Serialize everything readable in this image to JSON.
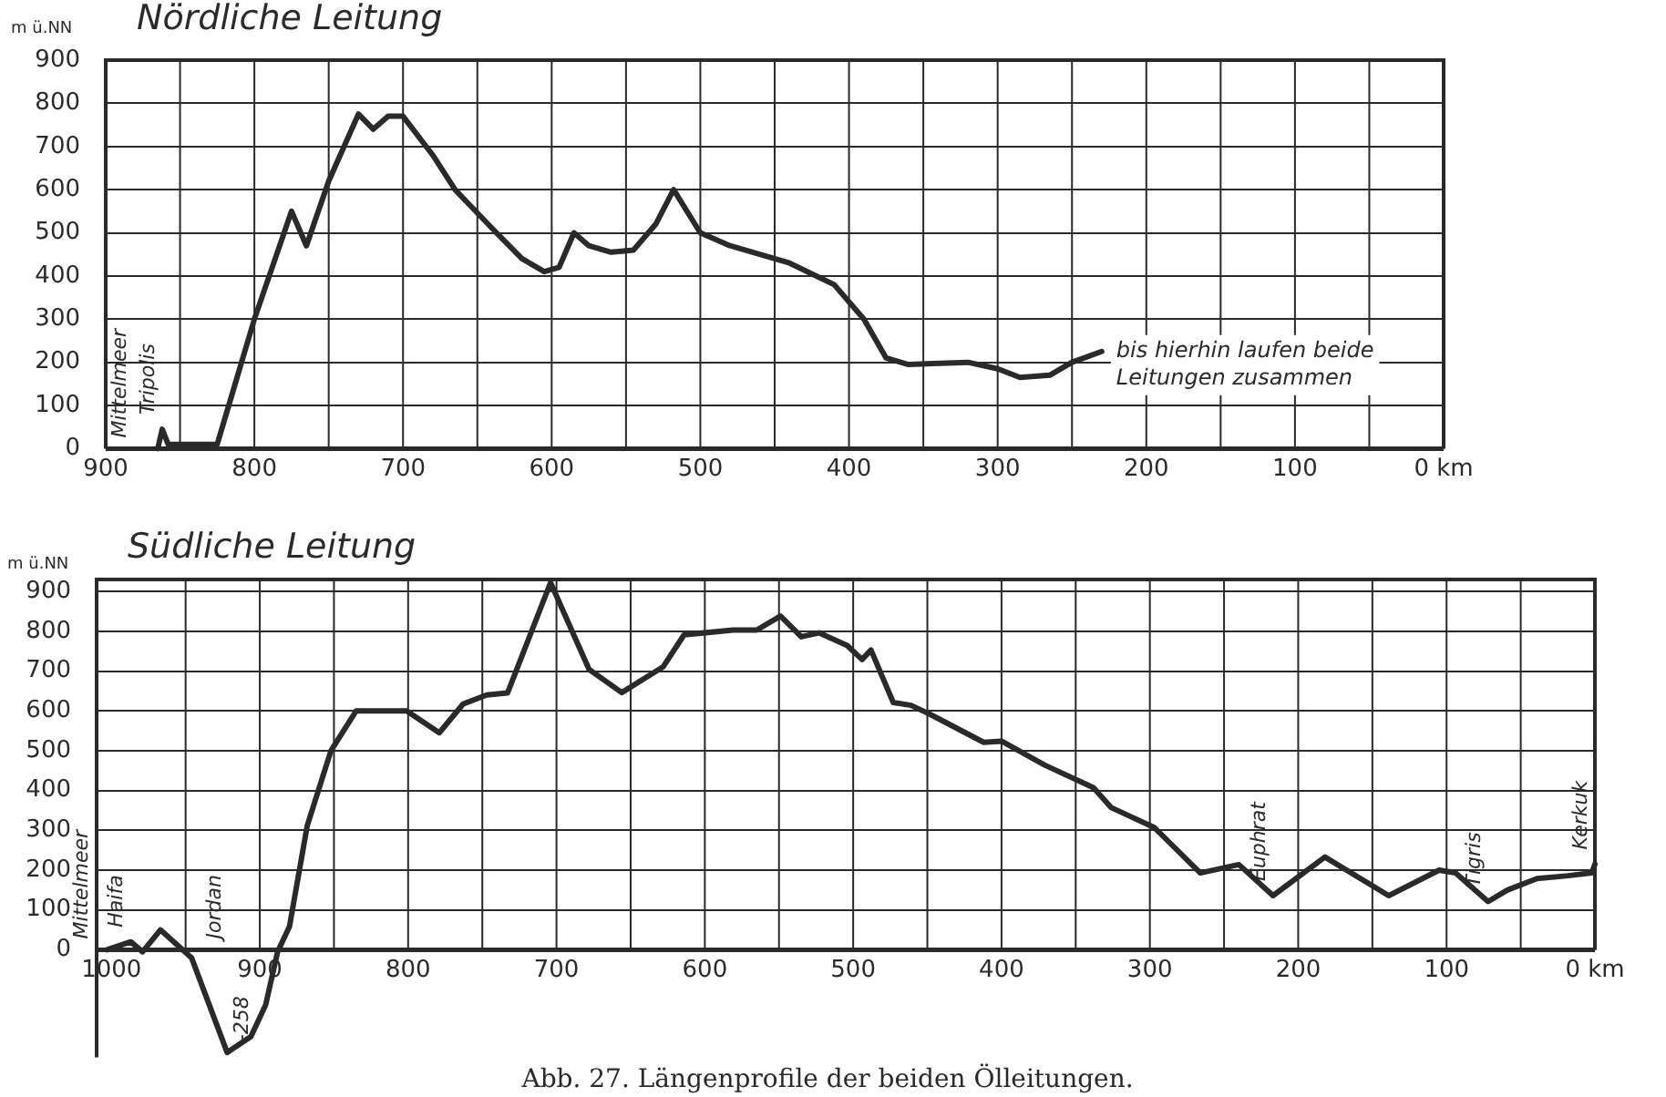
{
  "chart_data": [
    {
      "type": "line",
      "title": "Nördliche Leitung",
      "ylabel": "m ü.NN",
      "xlim": [
        900,
        0
      ],
      "ylim": [
        0,
        900
      ],
      "xticks": [
        900,
        {
          "value": 850,
          "label": null
        },
        800,
        {
          "value": 750,
          "label": null
        },
        700,
        {
          "value": 650,
          "label": null
        },
        600,
        {
          "value": 550,
          "label": null
        },
        500,
        {
          "value": 450,
          "label": null
        },
        400,
        {
          "value": 350,
          "label": null
        },
        300,
        {
          "value": 250,
          "label": null
        },
        200,
        {
          "value": 150,
          "label": null
        },
        100,
        {
          "value": 50,
          "label": null
        },
        {
          "value": 0,
          "label": "0 km"
        }
      ],
      "yticks": [
        0,
        100,
        200,
        300,
        400,
        500,
        600,
        700,
        800,
        900
      ],
      "grid": true,
      "series": [
        {
          "color": "#2a2a2a",
          "x": [
            865,
            862,
            858,
            825,
            800,
            790,
            775,
            765,
            750,
            730,
            720,
            710,
            700,
            680,
            665,
            640,
            620,
            605,
            595,
            585,
            575,
            560,
            545,
            530,
            518,
            500,
            480,
            440,
            410,
            390,
            375,
            360,
            320,
            300,
            285,
            265,
            250,
            230
          ],
          "values": [
            0,
            45,
            10,
            10,
            300,
            400,
            550,
            470,
            620,
            775,
            740,
            770,
            770,
            680,
            600,
            510,
            440,
            410,
            420,
            500,
            470,
            455,
            460,
            520,
            600,
            500,
            470,
            430,
            380,
            300,
            210,
            195,
            200,
            185,
            165,
            170,
            200,
            225
          ]
        }
      ],
      "annotations": [
        "Mittelmeer",
        {
          "text": "Tripolis",
          "x": 862,
          "y": 45
        },
        {
          "text": "bis hierhin laufen beide Leitungen zusammen",
          "x": 230,
          "y": 225
        }
      ]
    },
    {
      "type": "line",
      "title": "Südliche Leitung",
      "ylabel": "m ü.NN",
      "xlim": [
        1010,
        0
      ],
      "ylim": [
        -270,
        930
      ],
      "xticks": [
        1000,
        {
          "value": 950,
          "label": null
        },
        900,
        {
          "value": 850,
          "label": null
        },
        800,
        {
          "value": 750,
          "label": null
        },
        700,
        {
          "value": 650,
          "label": null
        },
        600,
        {
          "value": 550,
          "label": null
        },
        500,
        {
          "value": 450,
          "label": null
        },
        400,
        {
          "value": 350,
          "label": null
        },
        300,
        {
          "value": 250,
          "label": null
        },
        200,
        {
          "value": 150,
          "label": null
        },
        100,
        {
          "value": 50,
          "label": null
        },
        {
          "value": 0,
          "label": "0 km"
        }
      ],
      "yticks": [
        0,
        100,
        200,
        300,
        400,
        500,
        600,
        700,
        800,
        900
      ],
      "grid": true,
      "series": [
        {
          "color": "#2a2a2a",
          "x": [
            1003,
            987,
            979,
            967,
            946,
            922,
            906,
            896,
            888,
            880,
            868,
            852,
            835,
            801,
            779,
            763,
            747,
            733,
            704,
            678,
            656,
            628,
            614,
            581,
            565,
            549,
            535,
            523,
            504,
            494,
            488,
            473,
            461,
            449,
            412,
            400,
            371,
            338,
            326,
            297,
            266,
            240,
            217,
            182,
            139,
            105,
            94,
            72,
            59,
            39,
            18,
            2,
            0
          ],
          "values": [
            0,
            20,
            -5,
            50,
            -20,
            -258,
            -218,
            -138,
            -5,
            58,
            312,
            500,
            600,
            600,
            545,
            617,
            640,
            645,
            922,
            704,
            646,
            711,
            791,
            803,
            803,
            838,
            786,
            796,
            764,
            729,
            753,
            621,
            614,
            593,
            521,
            524,
            464,
            407,
            357,
            307,
            193,
            214,
            136,
            233,
            136,
            200,
            193,
            121,
            150,
            179,
            186,
            193,
            215
          ]
        }
      ],
      "annotations": [
        "Mittelmeer",
        {
          "text": "Haifa",
          "x": 987,
          "y": 20
        },
        "Jordan",
        {
          "text": "-258",
          "x": 922,
          "y": -258
        },
        {
          "text": "Euphrat",
          "x": 217,
          "y": 136
        },
        {
          "text": "Tigris",
          "x": 72,
          "y": 121
        },
        {
          "text": "Kerkuk",
          "x": 0,
          "y": 215
        },
        "Abb. 27. Längenprofile der beiden Ölleitungen."
      ]
    }
  ]
}
